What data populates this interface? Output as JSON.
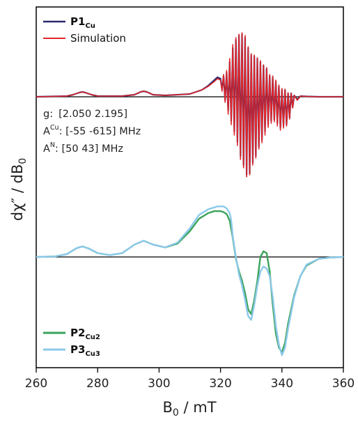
{
  "chart_data": {
    "type": "line",
    "xlabel": {
      "main": "B",
      "sub": "0",
      "rest": " / mT"
    },
    "ylabel": {
      "main": "dχ″ / dB",
      "sub": "0"
    },
    "xlim": [
      260,
      360
    ],
    "x_ticks": [
      260,
      280,
      300,
      320,
      340,
      360
    ],
    "grid": false,
    "colors": {
      "P1Cu": "#2a2a6e",
      "Simulation": "#e0262b",
      "P2Cu2": "#3aa35a",
      "P3Cu3": "#8cc8ea",
      "baseline": "#000000"
    },
    "legend_top": [
      {
        "main": "P1",
        "sub": "Cu",
        "color": "#2a2a6e"
      },
      {
        "main": "Simulation",
        "sub": "",
        "color": "#e0262b"
      }
    ],
    "legend_bottom": [
      {
        "main": "P2",
        "sub": "Cu2",
        "color": "#3aa35a"
      },
      {
        "main": "P3",
        "sub": "Cu3",
        "color": "#8cc8ea"
      }
    ],
    "annotations": [
      {
        "label": "g:",
        "sup": "",
        "value": "[2.050 2.195]"
      },
      {
        "label": "A",
        "sup": "Cu",
        "value": ": [-55 -615] MHz"
      },
      {
        "label": "A",
        "sup": "N",
        "value": ": [50 43] MHz"
      }
    ],
    "panels": {
      "top": {
        "baseline": 0,
        "ylim": [
          -1.3,
          1.0
        ],
        "series": [
          {
            "name": "P1Cu",
            "x": [
              260,
              270,
              272,
              274,
              275,
              276,
              278,
              280,
              288,
              292,
              294,
              295,
              296,
              298,
              302,
              310,
              312,
              314,
              316,
              318,
              319,
              320,
              320.5,
              321,
              321.5,
              322,
              322.5,
              323,
              323.5,
              324,
              324.5,
              325,
              325.5,
              326,
              326.5,
              327,
              327.5,
              328,
              328.5,
              329,
              329.5,
              330,
              330.5,
              331,
              331.5,
              332,
              332.5,
              333,
              333.5,
              334,
              334.5,
              335,
              335.5,
              336,
              336.5,
              337,
              337.5,
              338,
              338.5,
              339,
              339.5,
              340,
              340.5,
              341,
              341.5,
              342,
              342.5,
              343,
              343.5,
              344,
              345,
              346,
              348,
              352,
              360
            ],
            "y": [
              0,
              0.01,
              0.03,
              0.06,
              0.07,
              0.06,
              0.03,
              0.01,
              0.01,
              0.03,
              0.07,
              0.08,
              0.07,
              0.03,
              0.02,
              0.04,
              0.07,
              0.1,
              0.16,
              0.24,
              0.28,
              0.26,
              0.1,
              0.3,
              -0.05,
              0.35,
              -0.2,
              0.5,
              -0.35,
              0.7,
              -0.5,
              0.82,
              -0.65,
              0.88,
              -0.85,
              0.9,
              -0.98,
              0.85,
              -1.12,
              0.7,
              -1.1,
              0.6,
              -0.95,
              0.58,
              -0.85,
              0.55,
              -0.72,
              0.5,
              -0.62,
              0.45,
              -0.5,
              0.4,
              -0.4,
              0.3,
              -0.35,
              0.28,
              -0.33,
              0.22,
              -0.38,
              0.15,
              -0.45,
              0.1,
              -0.42,
              0.1,
              -0.4,
              0.05,
              -0.3,
              0.05,
              -0.15,
              0.02,
              -0.04,
              0.01,
              0.005,
              0,
              0
            ]
          },
          {
            "name": "Simulation",
            "x": [
              260,
              270,
              272,
              274,
              275,
              276,
              278,
              280,
              288,
              292,
              294,
              295,
              296,
              298,
              302,
              310,
              312,
              314,
              316,
              318,
              319,
              320,
              320.5,
              321,
              321.5,
              322,
              322.5,
              323,
              323.5,
              324,
              324.5,
              325,
              325.5,
              326,
              326.5,
              327,
              327.5,
              328,
              328.5,
              329,
              329.5,
              330,
              330.5,
              331,
              331.5,
              332,
              332.5,
              333,
              333.5,
              334,
              334.5,
              335,
              335.5,
              336,
              336.5,
              337,
              337.5,
              338,
              338.5,
              339,
              339.5,
              340,
              340.5,
              341,
              341.5,
              342,
              342.5,
              343,
              343.5,
              344,
              345,
              346,
              348,
              352,
              360
            ],
            "y": [
              0,
              0.01,
              0.03,
              0.06,
              0.07,
              0.06,
              0.03,
              0.01,
              0.01,
              0.03,
              0.07,
              0.08,
              0.07,
              0.03,
              0.02,
              0.04,
              0.07,
              0.1,
              0.15,
              0.22,
              0.26,
              0.24,
              0.08,
              0.32,
              -0.08,
              0.38,
              -0.25,
              0.55,
              -0.4,
              0.75,
              -0.55,
              0.85,
              -0.7,
              0.9,
              -0.9,
              0.92,
              -1.02,
              0.88,
              -1.15,
              0.72,
              -1.12,
              0.62,
              -0.98,
              0.6,
              -0.88,
              0.56,
              -0.75,
              0.52,
              -0.66,
              0.46,
              -0.55,
              0.42,
              -0.44,
              0.32,
              -0.38,
              0.3,
              -0.36,
              0.24,
              -0.42,
              0.17,
              -0.48,
              0.12,
              -0.45,
              0.11,
              -0.42,
              0.06,
              -0.32,
              0.05,
              -0.16,
              0.02,
              -0.05,
              0.01,
              0.005,
              0,
              0
            ]
          }
        ]
      },
      "bottom": {
        "baseline": 0,
        "ylim": [
          -1.05,
          0.55
        ],
        "series": [
          {
            "name": "P2Cu2",
            "x": [
              260,
              266,
              270,
              273,
              275,
              277,
              280,
              284,
              288,
              292,
              295,
              298,
              302,
              306,
              310,
              313,
              316,
              318,
              320,
              321,
              322,
              323,
              324,
              325,
              326,
              327,
              328,
              329,
              330,
              331,
              332,
              333,
              334,
              335,
              336,
              337,
              338,
              339,
              340,
              341,
              342,
              344,
              346,
              348,
              352,
              356,
              360
            ],
            "y": [
              0,
              0.005,
              0.03,
              0.09,
              0.11,
              0.09,
              0.04,
              0.02,
              0.04,
              0.13,
              0.17,
              0.13,
              0.1,
              0.14,
              0.27,
              0.4,
              0.46,
              0.48,
              0.48,
              0.47,
              0.45,
              0.38,
              0.2,
              -0.02,
              -0.15,
              -0.25,
              -0.38,
              -0.55,
              -0.6,
              -0.45,
              -0.25,
              0.0,
              0.06,
              0.04,
              -0.15,
              -0.5,
              -0.8,
              -0.95,
              -1.0,
              -0.9,
              -0.7,
              -0.4,
              -0.2,
              -0.09,
              -0.02,
              -0.005,
              0
            ]
          },
          {
            "name": "P3Cu3",
            "x": [
              260,
              266,
              270,
              273,
              275,
              277,
              280,
              284,
              288,
              292,
              295,
              298,
              302,
              306,
              310,
              313,
              316,
              318,
              319,
              320,
              321,
              322,
              323,
              323.5,
              324,
              325,
              326,
              327,
              328,
              329,
              330,
              331,
              332,
              333,
              334,
              335,
              336,
              337,
              338,
              339,
              340,
              341,
              342,
              344,
              346,
              348,
              352,
              356,
              360
            ],
            "y": [
              0,
              0.005,
              0.03,
              0.09,
              0.11,
              0.09,
              0.04,
              0.02,
              0.04,
              0.13,
              0.17,
              0.13,
              0.1,
              0.15,
              0.3,
              0.44,
              0.5,
              0.52,
              0.53,
              0.53,
              0.53,
              0.51,
              0.46,
              0.38,
              0.22,
              0.0,
              -0.18,
              -0.3,
              -0.45,
              -0.62,
              -0.66,
              -0.5,
              -0.3,
              -0.15,
              -0.1,
              -0.12,
              -0.2,
              -0.42,
              -0.72,
              -0.92,
              -1.03,
              -0.95,
              -0.75,
              -0.42,
              -0.2,
              -0.08,
              -0.02,
              -0.005,
              0
            ]
          }
        ]
      }
    }
  }
}
